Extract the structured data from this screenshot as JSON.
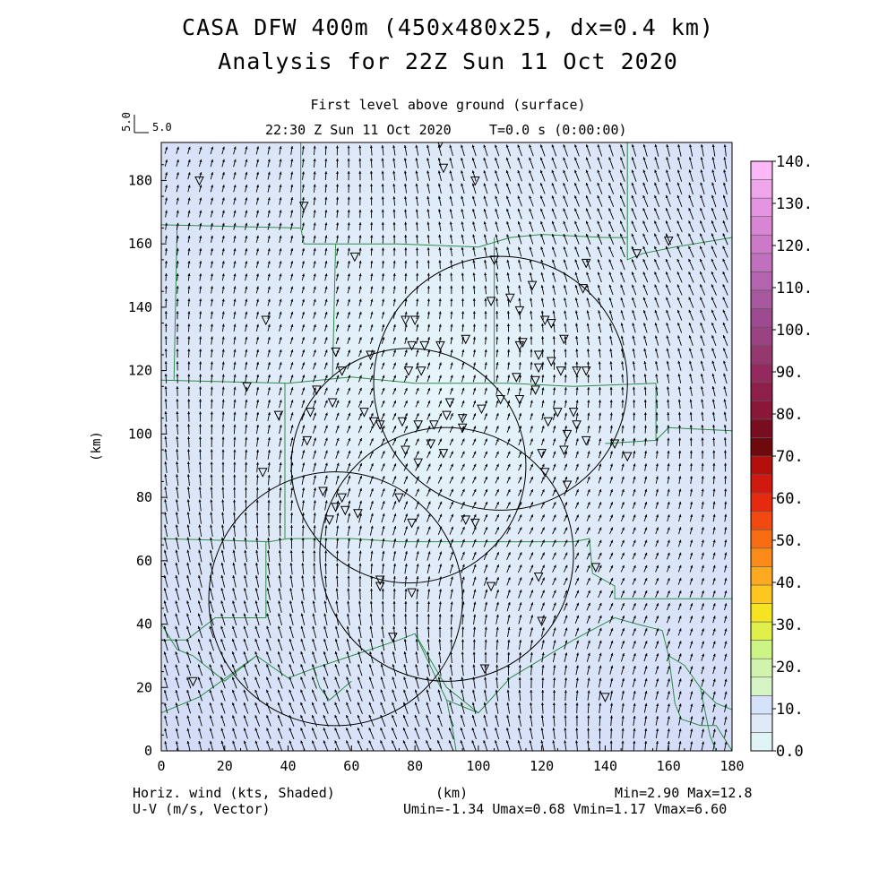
{
  "header": {
    "title_line1": "CASA DFW 400m (450x480x25, dx=0.4 km)",
    "title_line2": "Analysis for 22Z Sun 11 Oct 2020",
    "level": "First level above ground (surface)",
    "valid_time": "22:30 Z Sun 11 Oct 2020",
    "model_time": "T=0.0 s (0:00:00)",
    "ref_vector_v": "5.0",
    "ref_vector_u": "5.0"
  },
  "footer": {
    "left_line1": "Horiz. wind (kts, Shaded)",
    "left_line2": "U-V (m/s, Vector)",
    "xlabel": "(km)",
    "minmax": "Min=2.90 Max=12.8",
    "uvstats": "Umin=-1.34 Umax=0.68 Vmin=1.17 Vmax=6.60"
  },
  "chart_data": {
    "type": "heatmap",
    "xlabel": "(km)",
    "ylabel": "(km)",
    "xlim": [
      0,
      180
    ],
    "ylim": [
      0,
      192
    ],
    "x_ticks": [
      0,
      20,
      40,
      60,
      80,
      100,
      120,
      140,
      160,
      180
    ],
    "y_ticks": [
      0,
      20,
      40,
      60,
      80,
      100,
      120,
      140,
      160,
      180
    ],
    "field_units": "kts",
    "field_min": 2.9,
    "field_max": 12.8,
    "vector_stats": {
      "umin": -1.34,
      "umax": 0.68,
      "vmin": 1.17,
      "vmax": 6.6
    },
    "colorbar": {
      "levels": [
        "0.0",
        "10.",
        "20.",
        "30.",
        "40.",
        "50.",
        "60.",
        "70.",
        "80.",
        "90.",
        "100.",
        "110.",
        "120.",
        "130.",
        "140."
      ],
      "colors": [
        "#e0f4f6",
        "#dfe9f8",
        "#d6e2fa",
        "#d6f5c6",
        "#d2f3ad",
        "#cdf585",
        "#dff04a",
        "#f6e322",
        "#fec61e",
        "#fdaa20",
        "#fb8b18",
        "#f86c12",
        "#f04a10",
        "#e52a10",
        "#d01a10",
        "#b40e0e",
        "#6e0a0e",
        "#7a0c22",
        "#8a1638",
        "#8e1e4a",
        "#932a5e",
        "#953870",
        "#9a4282",
        "#9e4a90",
        "#a8589e",
        "#b464ae",
        "#c070bc",
        "#cc7ac8",
        "#d886d4",
        "#e494e0",
        "#f0a4ea",
        "#fcb8f6"
      ]
    },
    "radar_rings": [
      {
        "x": 55,
        "y": 48,
        "r": 40
      },
      {
        "x": 78,
        "y": 90,
        "r": 37
      },
      {
        "x": 90,
        "y": 62,
        "r": 40
      },
      {
        "x": 107,
        "y": 116,
        "r": 40
      }
    ],
    "stations": [
      [
        12,
        180
      ],
      [
        45,
        172
      ],
      [
        88,
        192
      ],
      [
        89,
        184
      ],
      [
        99,
        180
      ],
      [
        61,
        156
      ],
      [
        105,
        155
      ],
      [
        134,
        154
      ],
      [
        133,
        146
      ],
      [
        33,
        136
      ],
      [
        80,
        136
      ],
      [
        77,
        136
      ],
      [
        104,
        142
      ],
      [
        110,
        143
      ],
      [
        117,
        147
      ],
      [
        113,
        139
      ],
      [
        121,
        136
      ],
      [
        123,
        135
      ],
      [
        113,
        128
      ],
      [
        114,
        129
      ],
      [
        119,
        125
      ],
      [
        123,
        123
      ],
      [
        66,
        125
      ],
      [
        79,
        128
      ],
      [
        83,
        128
      ],
      [
        88,
        128
      ],
      [
        96,
        130
      ],
      [
        55,
        126
      ],
      [
        57,
        120
      ],
      [
        78,
        120
      ],
      [
        82,
        120
      ],
      [
        112,
        118
      ],
      [
        118,
        117
      ],
      [
        119,
        121
      ],
      [
        127,
        130
      ],
      [
        126,
        120
      ],
      [
        131,
        120
      ],
      [
        134,
        120
      ],
      [
        27,
        115
      ],
      [
        49,
        114
      ],
      [
        54,
        110
      ],
      [
        64,
        107
      ],
      [
        67,
        104
      ],
      [
        69,
        103
      ],
      [
        76,
        104
      ],
      [
        81,
        103
      ],
      [
        86,
        103
      ],
      [
        90,
        106
      ],
      [
        91,
        110
      ],
      [
        95,
        102
      ],
      [
        107,
        111
      ],
      [
        113,
        111
      ],
      [
        118,
        114
      ],
      [
        122,
        104
      ],
      [
        125,
        107
      ],
      [
        130,
        107
      ],
      [
        127,
        95
      ],
      [
        128,
        100
      ],
      [
        131,
        103
      ],
      [
        134,
        98
      ],
      [
        37,
        106
      ],
      [
        47,
        107
      ],
      [
        46,
        98
      ],
      [
        32,
        88
      ],
      [
        77,
        95
      ],
      [
        81,
        91
      ],
      [
        85,
        97
      ],
      [
        89,
        94
      ],
      [
        95,
        105
      ],
      [
        101,
        108
      ],
      [
        120,
        94
      ],
      [
        121,
        88
      ],
      [
        128,
        84
      ],
      [
        51,
        82
      ],
      [
        57,
        80
      ],
      [
        55,
        77
      ],
      [
        58,
        76
      ],
      [
        62,
        75
      ],
      [
        75,
        80
      ],
      [
        79,
        72
      ],
      [
        96,
        73
      ],
      [
        99,
        72
      ],
      [
        53,
        73
      ],
      [
        69,
        54
      ],
      [
        69,
        52
      ],
      [
        79,
        50
      ],
      [
        104,
        52
      ],
      [
        119,
        55
      ],
      [
        137,
        58
      ],
      [
        120,
        41
      ],
      [
        73,
        36
      ],
      [
        102,
        26
      ],
      [
        140,
        17
      ],
      [
        10,
        22
      ],
      [
        143,
        97
      ],
      [
        147,
        93
      ],
      [
        150,
        157
      ],
      [
        160,
        161
      ]
    ],
    "boundaries": [
      [
        [
          0,
          166
        ],
        [
          44,
          165
        ],
        [
          45,
          160
        ],
        [
          65,
          160
        ],
        [
          75,
          160
        ],
        [
          100,
          159
        ],
        [
          110,
          162
        ],
        [
          120,
          163
        ],
        [
          140,
          162
        ],
        [
          147,
          162
        ],
        [
          147,
          155
        ],
        [
          152,
          157
        ],
        [
          162,
          159
        ],
        [
          180,
          162
        ]
      ],
      [
        [
          44,
          192
        ],
        [
          44,
          165
        ]
      ],
      [
        [
          147,
          192
        ],
        [
          147,
          162
        ]
      ],
      [
        [
          5,
          166
        ],
        [
          4,
          117
        ]
      ],
      [
        [
          55,
          160
        ],
        [
          54,
          118
        ]
      ],
      [
        [
          105,
          162
        ],
        [
          105,
          116
        ]
      ],
      [
        [
          0,
          117
        ],
        [
          40,
          116
        ],
        [
          60,
          118
        ],
        [
          80,
          116
        ],
        [
          110,
          116
        ],
        [
          130,
          115
        ],
        [
          156,
          116
        ]
      ],
      [
        [
          156,
          116
        ],
        [
          156,
          98
        ]
      ],
      [
        [
          140,
          97
        ],
        [
          156,
          98
        ],
        [
          160,
          102
        ],
        [
          180,
          101
        ]
      ],
      [
        [
          39,
          116
        ],
        [
          39,
          67
        ]
      ],
      [
        [
          0,
          67
        ],
        [
          34,
          66
        ],
        [
          40,
          67
        ],
        [
          60,
          67
        ],
        [
          75,
          66
        ],
        [
          90,
          66
        ],
        [
          110,
          66
        ],
        [
          130,
          66
        ],
        [
          135,
          67
        ],
        [
          136,
          56
        ],
        [
          143,
          52
        ],
        [
          143,
          48
        ],
        [
          180,
          48
        ]
      ],
      [
        [
          33,
          66
        ],
        [
          33,
          42
        ],
        [
          17,
          42
        ],
        [
          8,
          35
        ]
      ],
      [
        [
          0,
          35
        ],
        [
          8,
          35
        ]
      ],
      [
        [
          0,
          40
        ],
        [
          5,
          32
        ],
        [
          10,
          30
        ],
        [
          20,
          22
        ],
        [
          30,
          30
        ],
        [
          40,
          23
        ],
        [
          48,
          26
        ],
        [
          50,
          20
        ],
        [
          53,
          16
        ],
        [
          60,
          22
        ]
      ],
      [
        [
          0,
          12
        ],
        [
          12,
          17
        ],
        [
          30,
          30
        ]
      ],
      [
        [
          48,
          26
        ],
        [
          75,
          35
        ],
        [
          80,
          37
        ],
        [
          90,
          16
        ],
        [
          100,
          12
        ],
        [
          110,
          23
        ],
        [
          130,
          35
        ],
        [
          143,
          42
        ],
        [
          150,
          40
        ],
        [
          158,
          38
        ],
        [
          160,
          30
        ],
        [
          165,
          27
        ],
        [
          170,
          20
        ],
        [
          175,
          15
        ],
        [
          180,
          13
        ]
      ],
      [
        [
          90,
          16
        ],
        [
          92,
          6
        ],
        [
          93,
          0
        ]
      ],
      [
        [
          80,
          37
        ],
        [
          90,
          20
        ],
        [
          100,
          12
        ]
      ],
      [
        [
          170,
          20
        ],
        [
          173,
          5
        ],
        [
          175,
          0
        ]
      ],
      [
        [
          160,
          30
        ],
        [
          162,
          15
        ],
        [
          164,
          10
        ],
        [
          170,
          8
        ],
        [
          175,
          8
        ],
        [
          180,
          0
        ]
      ]
    ]
  }
}
